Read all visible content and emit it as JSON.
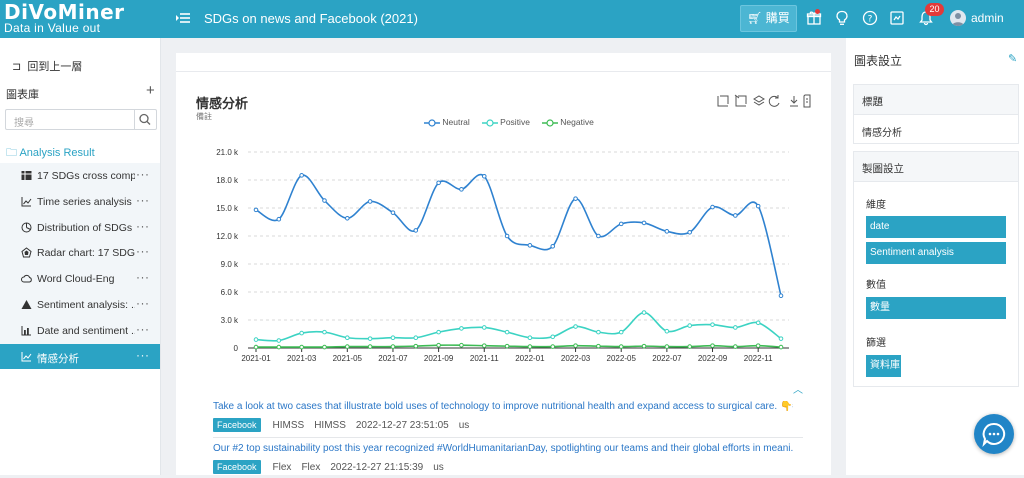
{
  "brand": {
    "logo_line1": "DiVoMiner",
    "logo_line2": "Data in  Value out"
  },
  "header": {
    "title": "SDGs on news and Facebook (2021)",
    "buy_label": "購買",
    "notif_count": "20",
    "user": "admin"
  },
  "sidebar": {
    "back_label": "回到上一層",
    "library_label": "圖表庫",
    "search_placeholder": "搜尋",
    "folder_label": "Analysis Result",
    "items": [
      {
        "label": "17 SDGs cross comp...",
        "icon": "table-icon"
      },
      {
        "label": "Time series analysis ...",
        "icon": "line-chart-icon"
      },
      {
        "label": "Distribution of SDGs ...",
        "icon": "pie-chart-icon"
      },
      {
        "label": "Radar chart: 17 SDGs...",
        "icon": "radar-icon"
      },
      {
        "label": "Word Cloud-Eng",
        "icon": "cloud-icon"
      },
      {
        "label": "Sentiment analysis: ...",
        "icon": "triangle-icon"
      },
      {
        "label": "Date and sentiment ...",
        "icon": "bar-chart-icon"
      },
      {
        "label": "情感分析",
        "icon": "line-chart-icon",
        "active": true
      }
    ]
  },
  "chart_panel": {
    "title": "情感分析",
    "subtitle": "備註",
    "collapse_icon": "chevron-up-icon"
  },
  "chart_data": {
    "type": "line",
    "title": "情感分析",
    "x": [
      "2021-01",
      "2021-02",
      "2021-03",
      "2021-04",
      "2021-05",
      "2021-06",
      "2021-07",
      "2021-08",
      "2021-09",
      "2021-10",
      "2021-11",
      "2021-12",
      "2022-01",
      "2022-02",
      "2022-03",
      "2022-04",
      "2022-05",
      "2022-06",
      "2022-07",
      "2022-08",
      "2022-09",
      "2022-10",
      "2022-11",
      "2022-12"
    ],
    "x_tick_labels": [
      "2021-01",
      "2021-03",
      "2021-05",
      "2021-07",
      "2021-09",
      "2021-11",
      "2022-01",
      "2022-03",
      "2022-05",
      "2022-07",
      "2022-09",
      "2022-11"
    ],
    "y_tick_labels": [
      "0",
      "3.0 k",
      "6.0 k",
      "9.0 k",
      "12.0 k",
      "15.0 k",
      "18.0 k",
      "21.0 k"
    ],
    "ylim": [
      0,
      21000
    ],
    "grid": true,
    "legend_position": "top",
    "series": [
      {
        "name": "Neutral",
        "color": "#2f82d0",
        "values": [
          14800,
          13800,
          18500,
          15800,
          13900,
          15700,
          14500,
          12600,
          17700,
          17000,
          18400,
          12000,
          11000,
          10900,
          16000,
          12000,
          13300,
          13400,
          12500,
          12400,
          15100,
          14200,
          15200,
          5600
        ]
      },
      {
        "name": "Positive",
        "color": "#3cd3c3",
        "values": [
          900,
          800,
          1600,
          1700,
          1100,
          1000,
          1100,
          1100,
          1700,
          2100,
          2200,
          1700,
          1100,
          1200,
          2300,
          1700,
          1700,
          3800,
          1800,
          2400,
          2500,
          2200,
          2700,
          1000
        ]
      },
      {
        "name": "Negative",
        "color": "#3dbb54",
        "values": [
          100,
          100,
          100,
          100,
          150,
          150,
          150,
          200,
          300,
          300,
          250,
          200,
          150,
          150,
          250,
          200,
          150,
          200,
          150,
          150,
          250,
          150,
          250,
          100
        ]
      }
    ]
  },
  "posts": [
    {
      "text": "Take a look at two cases that illustrate bold uses of technology to improve nutritional health and expand access to surgical care. 👇#...",
      "source": "Facebook",
      "author": "HIMSS",
      "account": "HIMSS",
      "date": "2022-12-27 23:51:05",
      "lang": "us"
    },
    {
      "text": "Our #2 top sustainability post this year recognized #WorldHumanitarianDay, spotlighting our teams and their global efforts in meani...",
      "source": "Facebook",
      "author": "Flex",
      "account": "Flex",
      "date": "2022-12-27 21:15:39",
      "lang": "us"
    }
  ],
  "settings": {
    "title": "圖表設立",
    "title_card": {
      "header": "標題",
      "value": "情感分析"
    },
    "chart_card": {
      "header": "製圖設立",
      "dimension_label": "維度",
      "dimensions": [
        "date",
        "Sentiment analysis"
      ],
      "value_label": "數值",
      "value": "數量",
      "filter_label": "篩選",
      "filter": "資料庫"
    }
  }
}
